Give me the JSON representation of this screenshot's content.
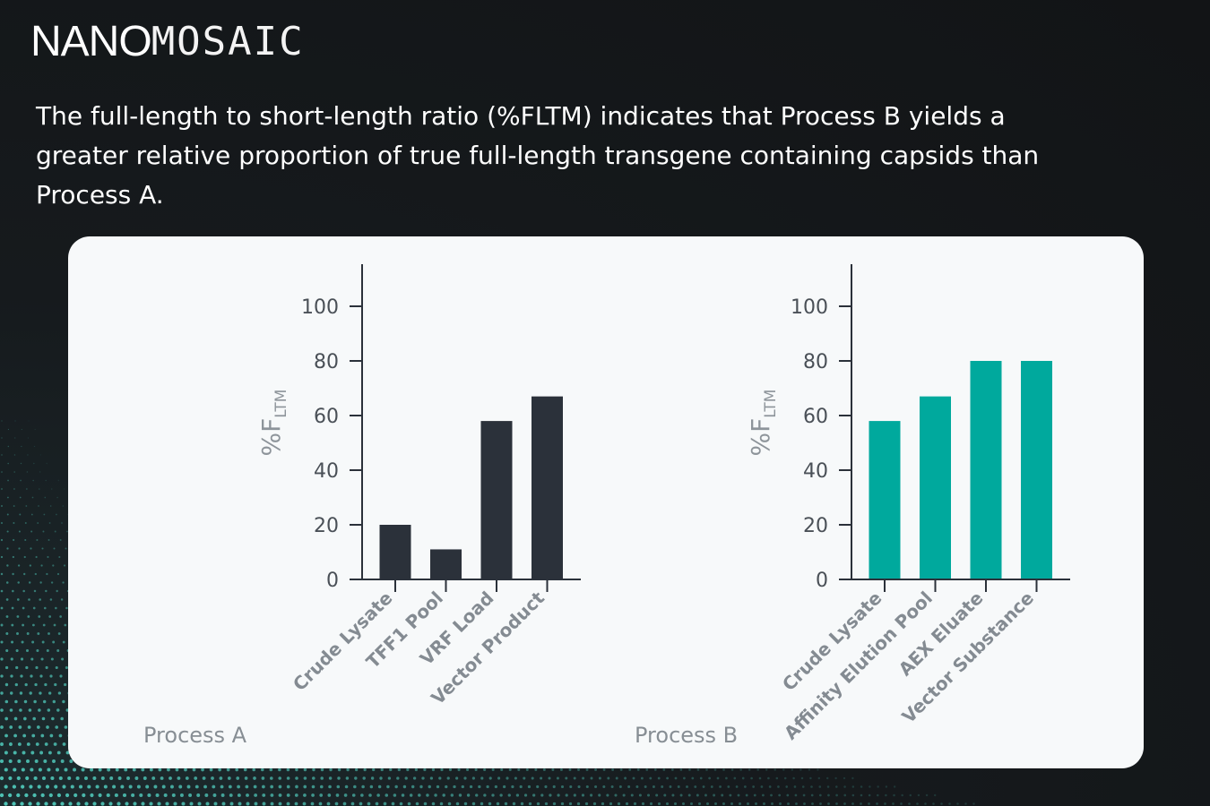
{
  "brand": {
    "part1": "NANO",
    "part2": "MOSAIC"
  },
  "headline": "The full-length to short-length ratio (%FLTM) indicates that Process B yields a greater relative proportion of true full-length transgene containing capsids than Process A.",
  "colors": {
    "process_a": "#2b313a",
    "process_b": "#00a99d",
    "axis": "#2b313a",
    "card": "#f7f9fa",
    "dots": "#54d6c6"
  },
  "chart_data": [
    {
      "type": "bar",
      "title": "Process A",
      "ylabel_main": "%F",
      "ylabel_sub": "LTM",
      "categories": [
        "Crude Lysate",
        "TFF1 Pool",
        "VRF Load",
        "Vector Product"
      ],
      "values": [
        20,
        11,
        58,
        67
      ],
      "yticks": [
        0,
        20,
        40,
        60,
        80,
        100
      ],
      "ylim": [
        0,
        115
      ],
      "grid": false
    },
    {
      "type": "bar",
      "title": "Process B",
      "ylabel_main": "%F",
      "ylabel_sub": "LTM",
      "categories": [
        "Crude Lysate",
        "Affinity Elution Pool",
        "AEX Eluate",
        "Vector Substance"
      ],
      "values": [
        58,
        67,
        80,
        80
      ],
      "yticks": [
        0,
        20,
        40,
        60,
        80,
        100
      ],
      "ylim": [
        0,
        115
      ],
      "grid": false
    }
  ]
}
